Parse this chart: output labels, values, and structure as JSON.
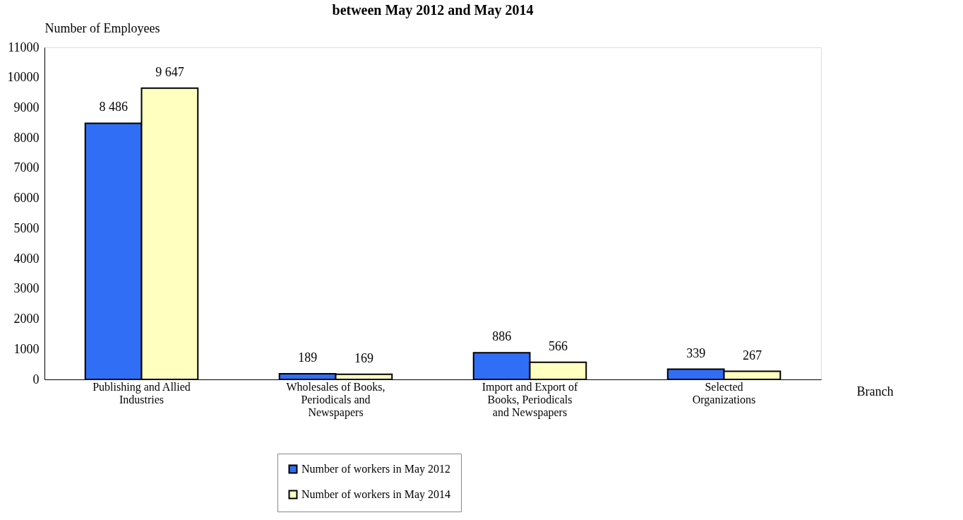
{
  "chart_data": {
    "type": "bar",
    "title": "between May 2012 and May 2014",
    "xlabel": "Branch",
    "ylabel": "Number of Employees",
    "categories": [
      "Publishing and Allied\nIndustries",
      "Wholesales of Books,\nPeriodicals and\nNewspapers",
      "Import and Export of\nBooks, Periodicals\nand Newspapers",
      "Selected\nOrganizations"
    ],
    "series": [
      {
        "name": "Number of workers in May 2012",
        "color": "#2f6ef5",
        "values": [
          8486,
          189,
          886,
          339
        ],
        "value_labels": [
          "8 486",
          "189",
          "886",
          "339"
        ]
      },
      {
        "name": "Number of workers in May 2014",
        "color": "#ffffc0",
        "values": [
          9647,
          169,
          566,
          267
        ],
        "value_labels": [
          "9 647",
          "169",
          "566",
          "267"
        ]
      }
    ],
    "ylim": [
      0,
      11000
    ],
    "yticks": [
      0,
      1000,
      2000,
      3000,
      4000,
      5000,
      6000,
      7000,
      8000,
      9000,
      10000,
      11000
    ],
    "grid": false,
    "legend": "bottom"
  }
}
